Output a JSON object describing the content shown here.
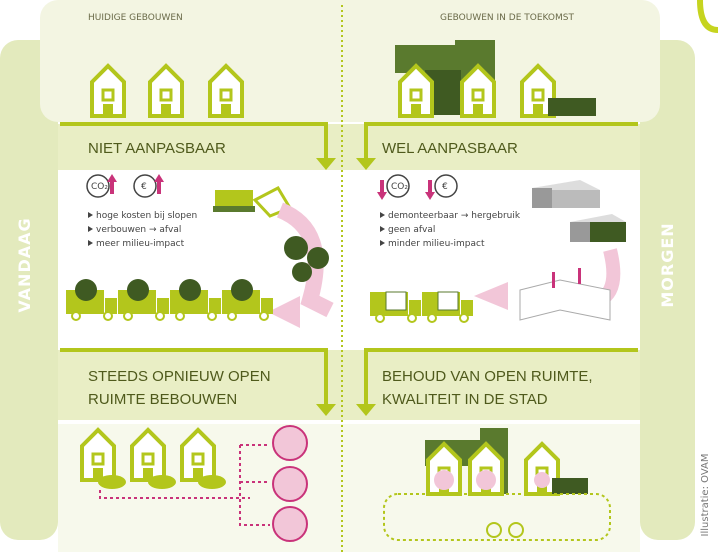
{
  "header": {
    "left": "HUIDIGE GEBOUWEN",
    "right": "GEBOUWEN IN DE TOEKOMST"
  },
  "sides": {
    "left": "VANDAAG",
    "right": "MORGEN"
  },
  "left": {
    "heading": "NIET AANPASBAAR",
    "icons": [
      "CO₂",
      "€"
    ],
    "bullets": [
      "hoge kosten bij slopen",
      "verbouwen → afval",
      "meer milieu-impact"
    ],
    "heading2": [
      "STEEDS OPNIEUW OPEN",
      "RUIMTE BEBOUWEN"
    ]
  },
  "right": {
    "heading": "WEL AANPASBAAR",
    "icons": [
      "CO₂",
      "€"
    ],
    "bullets": [
      "demonteerbaar → hergebruik",
      "geen afval",
      "minder milieu-impact"
    ],
    "heading2": [
      "BEHOUD VAN OPEN RUIMTE,",
      "KWALITEIT IN DE STAD"
    ]
  },
  "credit": "Illustratie: OVAM"
}
